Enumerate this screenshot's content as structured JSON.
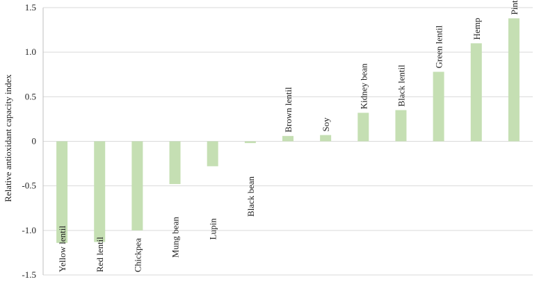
{
  "chart_data": {
    "type": "bar",
    "title": "",
    "xlabel": "",
    "ylabel": "Relative antioxidant capacity index",
    "ylim": [
      -1.5,
      1.5
    ],
    "yticks": [
      {
        "value": 1.5,
        "label": "1.5"
      },
      {
        "value": 1.0,
        "label": "1.0"
      },
      {
        "value": 0.5,
        "label": "0.5"
      },
      {
        "value": 0,
        "label": "0"
      },
      {
        "value": -0.5,
        "label": "-0.5"
      },
      {
        "value": -1.0,
        "label": "-1.0"
      },
      {
        "value": -1.5,
        "label": "-1.5"
      }
    ],
    "grid": true,
    "bar_color": "#c5dfb3",
    "categories": [
      "Yellow lentil",
      "Red lentil",
      "Chickpea",
      "Mung bean",
      "Lupin",
      "Black bean",
      "Brown lentil",
      "Soy",
      "Kidney bean",
      "Black lentil",
      "Green lentil",
      "Hemp",
      "Pinto bean"
    ],
    "values": [
      -1.14,
      -1.13,
      -1.0,
      -0.48,
      -0.28,
      -0.02,
      0.06,
      0.07,
      0.32,
      0.35,
      0.78,
      1.1,
      1.38
    ]
  }
}
